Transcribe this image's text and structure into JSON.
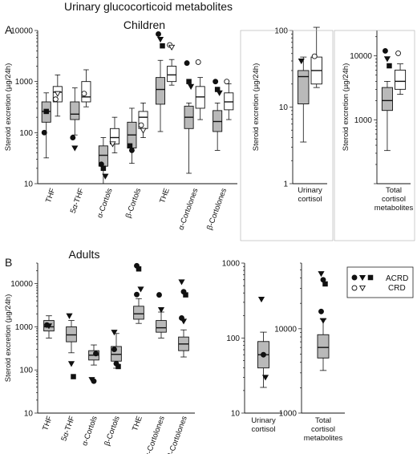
{
  "figure": {
    "title": "Urinary glucocorticoid metabolites",
    "panel_a_label": "A",
    "panel_a_title": "Children",
    "panel_b_label": "B",
    "panel_b_title": "Adults",
    "y_axis_label": "Steroid excretion (µg/24h)",
    "legend_acrd": "ACRD",
    "legend_crd": "CRD",
    "colors": {
      "acrd_box": "#b9b9b9",
      "crd_box": "#ffffff",
      "stroke": "#111111"
    }
  },
  "chart_data": [
    {
      "id": "children-metabolites",
      "type": "box",
      "scale": "log",
      "ylim": [
        10,
        10000
      ],
      "yticks": [
        10,
        100,
        1000,
        10000
      ],
      "ylabel": "Steroid excretion (µg/24h)",
      "categories": [
        "THF",
        "5α-THF",
        "α-Cortols",
        "β-Cortols",
        "THE",
        "α-Cortolones",
        "β-Cortolones"
      ],
      "series": [
        {
          "name": "ACRD",
          "boxes": [
            {
              "min": 32,
              "q1": 160,
              "median": 260,
              "q3": 400,
              "max": 600,
              "outliers": [
                {
                  "v": 100,
                  "s": "circle"
                },
                {
                  "v": 260,
                  "s": "square"
                }
              ]
            },
            {
              "min": 90,
              "q1": 180,
              "median": 230,
              "q3": 400,
              "max": 750,
              "outliers": [
                {
                  "v": 80,
                  "s": "circle"
                },
                {
                  "v": 50,
                  "s": "tri-down"
                }
              ]
            },
            {
              "min": 10,
              "q1": 22,
              "median": 36,
              "q3": 55,
              "max": 80,
              "outliers": [
                {
                  "v": 24,
                  "s": "circle"
                },
                {
                  "v": 20,
                  "s": "square"
                },
                {
                  "v": 14,
                  "s": "tri-down"
                }
              ]
            },
            {
              "min": 25,
              "q1": 50,
              "median": 90,
              "q3": 160,
              "max": 300,
              "outliers": [
                {
                  "v": 55,
                  "s": "square"
                },
                {
                  "v": 45,
                  "s": "circle"
                }
              ]
            },
            {
              "min": 105,
              "q1": 360,
              "median": 700,
              "q3": 1200,
              "max": 2600,
              "outliers": [
                {
                  "v": 8500,
                  "s": "circle"
                },
                {
                  "v": 6700,
                  "s": "tri-down"
                },
                {
                  "v": 5000,
                  "s": "square"
                }
              ]
            },
            {
              "min": 16,
              "q1": 120,
              "median": 200,
              "q3": 330,
              "max": 380,
              "outliers": [
                {
                  "v": 2300,
                  "s": "circle"
                },
                {
                  "v": 1000,
                  "s": "square"
                },
                {
                  "v": 800,
                  "s": "tri-down"
                }
              ]
            },
            {
              "min": 45,
              "q1": 105,
              "median": 165,
              "q3": 270,
              "max": 380,
              "outliers": [
                {
                  "v": 1000,
                  "s": "circle"
                },
                {
                  "v": 700,
                  "s": "square"
                },
                {
                  "v": 600,
                  "s": "tri-down"
                }
              ]
            }
          ]
        },
        {
          "name": "CRD",
          "boxes": [
            {
              "min": 210,
              "q1": 400,
              "median": 620,
              "q3": 800,
              "max": 1350,
              "outliers": [
                {
                  "v": 450,
                  "s": "circle"
                },
                {
                  "v": 580,
                  "s": "tri-down"
                }
              ]
            },
            {
              "min": 320,
              "q1": 400,
              "median": 500,
              "q3": 1000,
              "max": 1700,
              "outliers": [
                {
                  "v": 580,
                  "s": "circle"
                }
              ]
            },
            {
              "min": 40,
              "q1": 60,
              "median": 80,
              "q3": 120,
              "max": 200,
              "outliers": [
                {
                  "v": 60,
                  "s": "tri-down"
                }
              ]
            },
            {
              "min": 80,
              "q1": 120,
              "median": 200,
              "q3": 260,
              "max": 380,
              "outliers": [
                {
                  "v": 140,
                  "s": "circle"
                },
                {
                  "v": 110,
                  "s": "tri-down"
                }
              ]
            },
            {
              "min": 850,
              "q1": 1000,
              "median": 1350,
              "q3": 2000,
              "max": 2700,
              "outliers": [
                {
                  "v": 5200,
                  "s": "circle"
                },
                {
                  "v": 4700,
                  "s": "tri-down"
                }
              ]
            },
            {
              "min": 180,
              "q1": 300,
              "median": 500,
              "q3": 800,
              "max": 1200,
              "outliers": [
                {
                  "v": 2400,
                  "s": "circle"
                }
              ]
            },
            {
              "min": 180,
              "q1": 280,
              "median": 400,
              "q3": 600,
              "max": 900,
              "outliers": [
                {
                  "v": 1000,
                  "s": "circle"
                }
              ]
            }
          ]
        }
      ]
    },
    {
      "id": "children-cortisol",
      "type": "box",
      "scale": "log",
      "ylim": [
        1,
        100
      ],
      "yticks": [
        1,
        10,
        100
      ],
      "ylabel": "Steroid excretion (µg/24h)",
      "xlabel_lines": [
        "Urinary",
        "cortisol"
      ],
      "series": [
        {
          "name": "ACRD",
          "boxes": [
            {
              "min": 3.5,
              "q1": 11,
              "median": 25,
              "q3": 30,
              "max": 45,
              "outliers": [
                {
                  "v": 40,
                  "s": "tri-down"
                }
              ]
            }
          ]
        },
        {
          "name": "CRD",
          "boxes": [
            {
              "min": 18,
              "q1": 20,
              "median": 30,
              "q3": 45,
              "max": 110,
              "outliers": [
                {
                  "v": 46,
                  "s": "circle"
                }
              ]
            }
          ]
        }
      ]
    },
    {
      "id": "children-total",
      "type": "box",
      "scale": "log",
      "ylim": [
        100,
        25000
      ],
      "yticks": [
        1000,
        10000
      ],
      "ylabel": "Steroid excretion (µg/24h)",
      "xlabel_lines": [
        "Total",
        "cortisol",
        "metabolites"
      ],
      "series": [
        {
          "name": "ACRD",
          "boxes": [
            {
              "min": 330,
              "q1": 1400,
              "median": 2000,
              "q3": 3200,
              "max": 4000,
              "outliers": [
                {
                  "v": 12000,
                  "s": "circle"
                },
                {
                  "v": 9000,
                  "s": "tri-down"
                },
                {
                  "v": 7000,
                  "s": "square"
                }
              ]
            }
          ]
        },
        {
          "name": "CRD",
          "boxes": [
            {
              "min": 2500,
              "q1": 3000,
              "median": 4000,
              "q3": 6000,
              "max": 7500,
              "outliers": [
                {
                  "v": 11000,
                  "s": "circle"
                }
              ]
            }
          ]
        }
      ]
    },
    {
      "id": "adults-metabolites",
      "type": "box",
      "scale": "log",
      "ylim": [
        10,
        30000
      ],
      "yticks": [
        10,
        100,
        1000,
        10000
      ],
      "ylabel": "Steroid excretion (µg/24h)",
      "categories": [
        "THF",
        "5α-THF",
        "α-Cortols",
        "β-Cortols",
        "THE",
        "α-Cortolones",
        "β-Cortolones"
      ],
      "series": [
        {
          "name": "ACRD",
          "boxes": [
            {
              "min": 550,
              "q1": 800,
              "median": 1000,
              "q3": 1400,
              "max": 1800,
              "outliers": [
                {
                  "v": 1100,
                  "s": "circle"
                },
                {
                  "v": 1050,
                  "s": "tri-down"
                }
              ]
            },
            {
              "min": 250,
              "q1": 450,
              "median": 650,
              "q3": 1000,
              "max": 1400,
              "outliers": [
                {
                  "v": 1800,
                  "s": "tri-down"
                },
                {
                  "v": 140,
                  "s": "tri-down"
                },
                {
                  "v": 70,
                  "s": "square"
                }
              ]
            },
            {
              "min": 130,
              "q1": 170,
              "median": 220,
              "q3": 280,
              "max": 380,
              "outliers": [
                {
                  "v": 60,
                  "s": "tri-down"
                },
                {
                  "v": 55,
                  "s": "circle"
                },
                {
                  "v": 240,
                  "s": "circle"
                }
              ]
            },
            {
              "min": 110,
              "q1": 160,
              "median": 230,
              "q3": 350,
              "max": 700,
              "outliers": [
                {
                  "v": 750,
                  "s": "tri-down"
                },
                {
                  "v": 140,
                  "s": "circle"
                },
                {
                  "v": 120,
                  "s": "square"
                },
                {
                  "v": 300,
                  "s": "circle"
                }
              ]
            },
            {
              "min": 1200,
              "q1": 1500,
              "median": 2000,
              "q3": 3000,
              "max": 4500,
              "outliers": [
                {
                  "v": 26000,
                  "s": "circle"
                },
                {
                  "v": 22000,
                  "s": "square"
                },
                {
                  "v": 7500,
                  "s": "tri-down"
                },
                {
                  "v": 5600,
                  "s": "circle"
                }
              ]
            },
            {
              "min": 550,
              "q1": 750,
              "median": 950,
              "q3": 1400,
              "max": 2200,
              "outliers": [
                {
                  "v": 5500,
                  "s": "circle"
                },
                {
                  "v": 2500,
                  "s": "tri-down"
                }
              ]
            },
            {
              "min": 200,
              "q1": 280,
              "median": 400,
              "q3": 580,
              "max": 850,
              "outliers": [
                {
                  "v": 11000,
                  "s": "tri-down"
                },
                {
                  "v": 6500,
                  "s": "circle"
                },
                {
                  "v": 5500,
                  "s": "square"
                },
                {
                  "v": 1600,
                  "s": "circle"
                },
                {
                  "v": 1350,
                  "s": "tri-down"
                }
              ]
            }
          ]
        }
      ]
    },
    {
      "id": "adults-cortisol",
      "type": "box",
      "scale": "log",
      "ylim": [
        10,
        1000
      ],
      "yticks": [
        10,
        100,
        1000
      ],
      "ylabel": "",
      "xlabel_lines": [
        "Urinary",
        "cortisol"
      ],
      "series": [
        {
          "name": "ACRD",
          "boxes": [
            {
              "min": 22,
              "q1": 40,
              "median": 60,
              "q3": 90,
              "max": 120,
              "outliers": [
                {
                  "v": 330,
                  "s": "tri-down"
                },
                {
                  "v": 60,
                  "s": "circle"
                },
                {
                  "v": 30,
                  "s": "tri-down"
                }
              ]
            }
          ]
        }
      ]
    },
    {
      "id": "adults-total",
      "type": "box",
      "scale": "log",
      "ylim": [
        1000,
        60000
      ],
      "yticks": [
        1000,
        10000
      ],
      "ylabel": "",
      "xlabel_lines": [
        "Total",
        "cortisol",
        "metabolites"
      ],
      "series": [
        {
          "name": "ACRD",
          "boxes": [
            {
              "min": 3200,
              "q1": 4500,
              "median": 6000,
              "q3": 8500,
              "max": 13000,
              "outliers": [
                {
                  "v": 45000,
                  "s": "tri-down"
                },
                {
                  "v": 38000,
                  "s": "circle"
                },
                {
                  "v": 34000,
                  "s": "square"
                },
                {
                  "v": 16000,
                  "s": "circle"
                },
                {
                  "v": 12500,
                  "s": "tri-down"
                }
              ]
            }
          ]
        }
      ]
    }
  ]
}
